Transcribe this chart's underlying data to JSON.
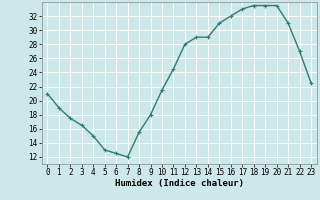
{
  "title": "",
  "xlabel": "Humidex (Indice chaleur)",
  "x": [
    0,
    1,
    2,
    3,
    4,
    5,
    6,
    7,
    8,
    9,
    10,
    11,
    12,
    13,
    14,
    15,
    16,
    17,
    18,
    19,
    20,
    21,
    22,
    23
  ],
  "y": [
    21,
    19,
    17.5,
    16.5,
    15,
    13,
    12.5,
    12,
    15.5,
    18,
    21.5,
    24.5,
    28,
    29,
    29,
    31,
    32,
    33,
    33.5,
    33.5,
    33.5,
    31,
    27,
    22.5
  ],
  "line_color": "#2e7d6e",
  "marker": "+",
  "bg_color": "#cce8e8",
  "grid_color": "#ffffff",
  "xlim": [
    -0.5,
    23.5
  ],
  "ylim": [
    11,
    34
  ],
  "yticks": [
    12,
    14,
    16,
    18,
    20,
    22,
    24,
    26,
    28,
    30,
    32
  ],
  "xticks": [
    0,
    1,
    2,
    3,
    4,
    5,
    6,
    7,
    8,
    9,
    10,
    11,
    12,
    13,
    14,
    15,
    16,
    17,
    18,
    19,
    20,
    21,
    22,
    23
  ],
  "tick_label_fontsize": 5.5,
  "xlabel_fontsize": 6.5,
  "line_width": 1.0,
  "marker_size": 3
}
